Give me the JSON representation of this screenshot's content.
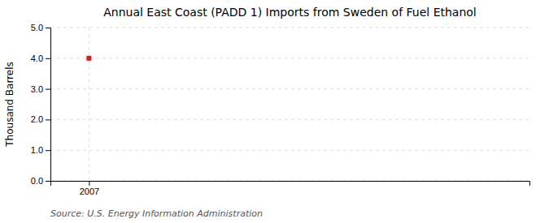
{
  "chart_data": {
    "type": "scatter",
    "title": "Annual East Coast (PADD 1) Imports from Sweden of Fuel Ethanol",
    "ylabel": "Thousand Barrels",
    "source": "Source: U.S. Energy Information Administration",
    "x": [
      2007
    ],
    "values": [
      4.0
    ],
    "color": "#cc2222",
    "marker": "square",
    "xlim": [
      2006.3,
      2015.0
    ],
    "xticks": [
      2007
    ],
    "ylim": [
      0.0,
      5.0
    ],
    "yticks": [
      {
        "value": 0,
        "label": "0.0"
      },
      {
        "value": 1,
        "label": "1.0"
      },
      {
        "value": 2,
        "label": "2.0"
      },
      {
        "value": 3,
        "label": "3.0"
      },
      {
        "value": 4,
        "label": "4.0"
      },
      {
        "value": 5,
        "label": "5.0"
      }
    ],
    "grid": true
  }
}
